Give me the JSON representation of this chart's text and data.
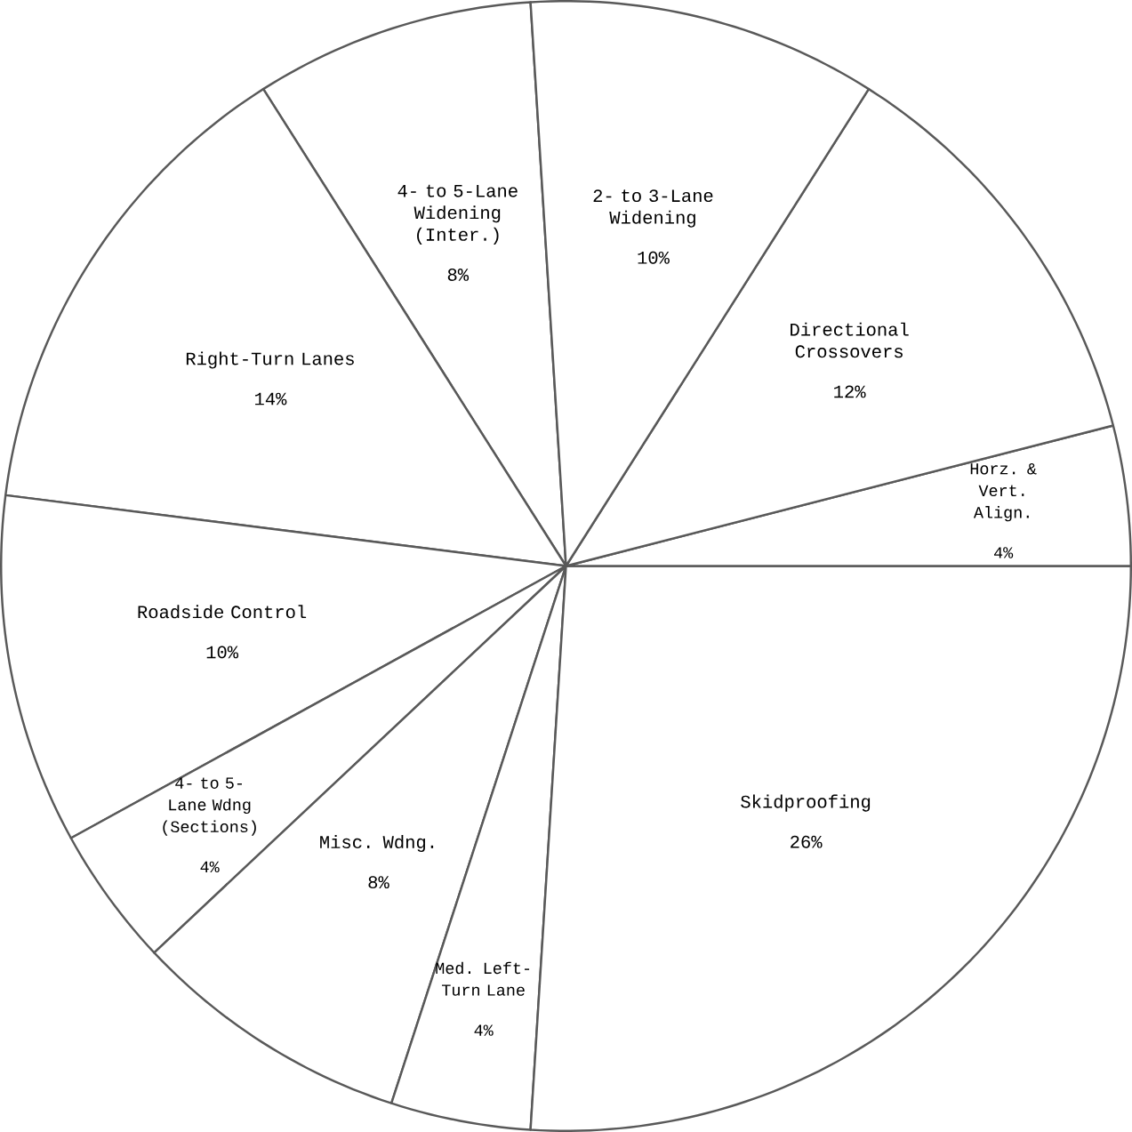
{
  "chart_data": {
    "type": "pie",
    "categories": [
      "4- to 5-Lane Widening (Inter.)",
      "Right-Turn Lanes",
      "Roadside Control",
      "4- to 5-Lane Wdng (Sections)",
      "Misc. Wdng.",
      "Med. Left-Turn Lane",
      "Skidproofing",
      "Horz. & Vert. Align.",
      "Directional Crossovers",
      "2- to 3-Lane Widening"
    ],
    "values": [
      8,
      14,
      10,
      4,
      8,
      4,
      26,
      4,
      12,
      10
    ],
    "value_labels": [
      "8%",
      "14%",
      "10%",
      "4%",
      "8%",
      "4%",
      "26%",
      "4%",
      "12%",
      "10%"
    ],
    "colors": [
      "#ffffff",
      "#ffffff",
      "#ffffff",
      "#ffffff",
      "#ffffff",
      "#ffffff",
      "#ffffff",
      "#ffffff",
      "#ffffff",
      "#ffffff"
    ]
  }
}
